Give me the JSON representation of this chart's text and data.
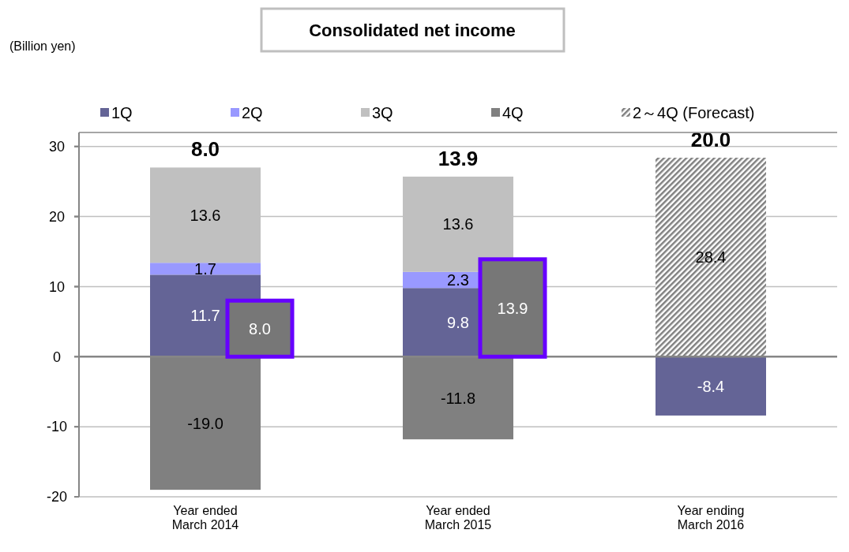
{
  "chart_data": [
    {
      "type": "bar",
      "title": "Consolidated net income",
      "annotations": [
        "(Billion yen)"
      ],
      "categories": [
        "Year ended\nMarch 2014",
        "Year ended\nMarch 2015",
        "Year ending\nMarch 2016"
      ],
      "stacked": true,
      "series": [
        {
          "name": "1Q",
          "color": "#646496",
          "values": [
            11.7,
            9.8,
            -8.4
          ],
          "value_labels": [
            "11.7",
            "9.8",
            "-8.4"
          ]
        },
        {
          "name": "2Q",
          "color": "#9999ff",
          "values": [
            1.7,
            2.3,
            null
          ],
          "value_labels": [
            "1.7",
            "2.3",
            null
          ]
        },
        {
          "name": "3Q",
          "color": "#c0c0c0",
          "values": [
            13.6,
            13.6,
            null
          ],
          "value_labels": [
            "13.6",
            "13.6",
            null
          ]
        },
        {
          "name": "4Q",
          "color": "#808080",
          "values": [
            -19.0,
            -11.8,
            null
          ],
          "value_labels": [
            "-19.0",
            "-11.8",
            null
          ]
        },
        {
          "name": "2～4Q (Forecast)",
          "color": "#808080",
          "values": [
            null,
            null,
            28.4
          ],
          "value_labels": [
            null,
            null,
            "28.4"
          ]
        }
      ],
      "totals": [
        "8.0",
        "13.9",
        "20.0"
      ],
      "ylim": [
        -20,
        32
      ],
      "yticks": [
        -20,
        -10,
        0,
        10,
        20,
        30
      ],
      "grid": "y",
      "legend": "top"
    },
    {
      "type": "bar",
      "categories": [
        null,
        null
      ],
      "series": [
        {
          "color": "#777777",
          "values": [
            8.0,
            13.9
          ],
          "value_labels": [
            "8.0",
            "13.9"
          ]
        }
      ],
      "ylim": [
        -20,
        32
      ],
      "yticks": [
        -20,
        -10,
        0,
        10,
        20,
        30
      ],
      "tick_labels": false
    }
  ]
}
